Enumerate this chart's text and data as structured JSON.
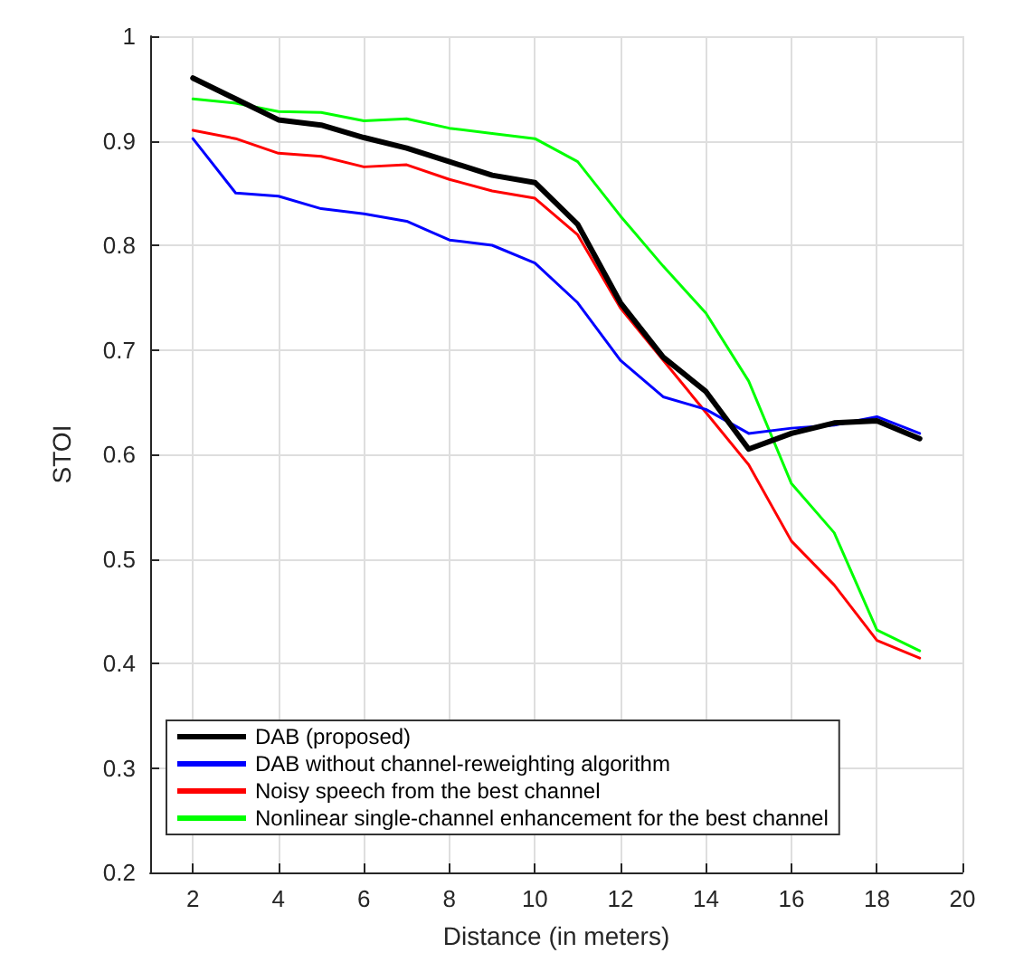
{
  "chart_data": {
    "type": "line",
    "xlabel": "Distance (in meters)",
    "ylabel": "STOI",
    "x": [
      2,
      3,
      4,
      5,
      6,
      7,
      8,
      9,
      10,
      11,
      12,
      13,
      14,
      15,
      16,
      17,
      18,
      19
    ],
    "series": [
      {
        "name": "DAB (proposed)",
        "color": "#000000",
        "values": [
          0.96,
          0.94,
          0.92,
          0.915,
          0.903,
          0.893,
          0.88,
          0.867,
          0.86,
          0.82,
          0.745,
          0.693,
          0.66,
          0.605,
          0.62,
          0.63,
          0.632,
          0.615
        ]
      },
      {
        "name": "DAB without channel-reweighting algorithm",
        "color": "#0000ff",
        "values": [
          0.902,
          0.85,
          0.847,
          0.835,
          0.83,
          0.823,
          0.805,
          0.8,
          0.783,
          0.745,
          0.69,
          0.655,
          0.643,
          0.62,
          0.625,
          0.628,
          0.636,
          0.62
        ]
      },
      {
        "name": "Noisy speech from the best channel",
        "color": "#ff0000",
        "values": [
          0.91,
          0.902,
          0.888,
          0.885,
          0.875,
          0.877,
          0.863,
          0.852,
          0.845,
          0.81,
          0.74,
          0.69,
          0.64,
          0.59,
          0.517,
          0.475,
          0.422,
          0.405
        ]
      },
      {
        "name": "Nonlinear single-channel enhancement for the best channel",
        "color": "#00ff00",
        "values": [
          0.94,
          0.936,
          0.928,
          0.927,
          0.919,
          0.921,
          0.912,
          0.907,
          0.902,
          0.88,
          0.828,
          0.78,
          0.735,
          0.67,
          0.572,
          0.525,
          0.432,
          0.412
        ]
      }
    ],
    "xlim": [
      1,
      20
    ],
    "xticks": [
      2,
      4,
      6,
      8,
      10,
      12,
      14,
      16,
      18,
      20
    ],
    "ylim": [
      0.2,
      1
    ],
    "yticks": [
      0.2,
      0.3,
      0.4,
      0.5,
      0.6,
      0.7,
      0.8,
      0.9,
      1
    ],
    "grid": true,
    "legend": "bottom left",
    "marker": "none",
    "line_style": "solid"
  }
}
